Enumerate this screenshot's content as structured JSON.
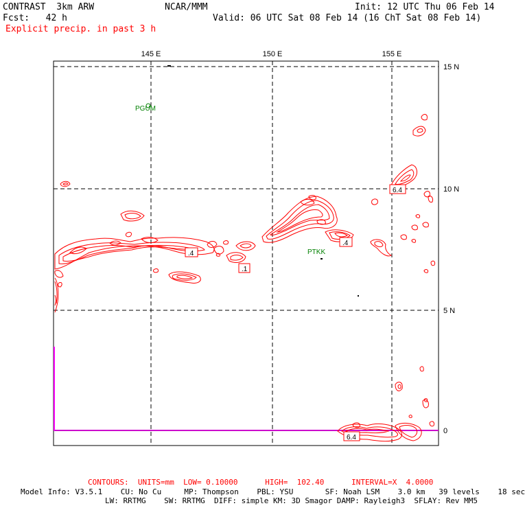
{
  "header": {
    "model": "CONTRAST  3km ARW",
    "forecast": "Fcst:   42 h",
    "center": "NCAR/MMM",
    "init": "Init: 12 UTC Thu 06 Feb 14",
    "valid": "Valid: 06 UTC Sat 08 Feb 14 (16 ChT Sat 08 Feb 14)",
    "field": "Explicit precip. in past 3 h"
  },
  "map": {
    "lon_labels": [
      "145 E",
      "150 E",
      "155 E"
    ],
    "lat_labels": [
      "15 N",
      "10 N",
      "5 N",
      "0"
    ],
    "stations": [
      "PGUM",
      "PTKK"
    ],
    "contour_labels": [
      "6.4",
      ".4",
      ".4",
      ".1",
      "6.4"
    ],
    "colors": {
      "contour": "#ff0000",
      "grid": "#000000",
      "station": "#008000",
      "equator": "#cc00cc"
    }
  },
  "footer": {
    "contours": "CONTOURS:  UNITS=mm  LOW= 0.10000      HIGH=  102.40      INTERVAL=X  4.0000",
    "model_info_1": "Model Info: V3.5.1    CU: No Cu     MP: Thompson    PBL: YSU       SF: Noah LSM    3.0 km   39 levels    18 sec",
    "model_info_2": "LW: RRTMG    SW: RRTMG  DIFF: simple KM: 3D Smagor DAMP: Rayleigh3  SFLAY: Rev MM5"
  }
}
